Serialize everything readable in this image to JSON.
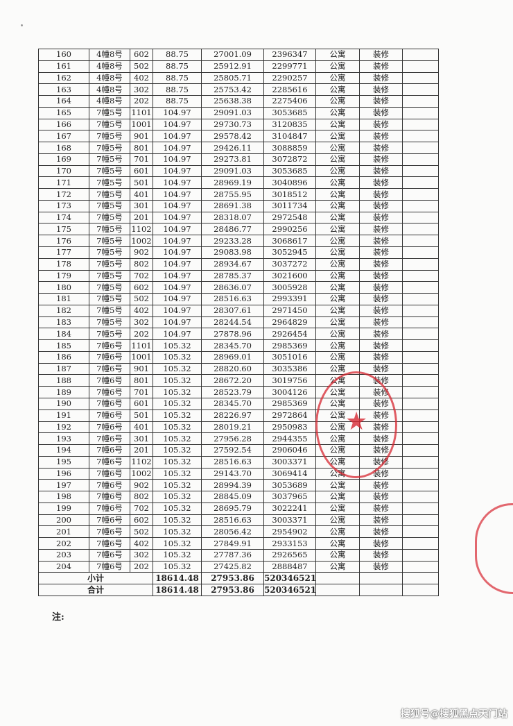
{
  "table": {
    "rows": [
      [
        "160",
        "4幢8号",
        "602",
        "88.75",
        "27001.09",
        "2396347",
        "公寓",
        "装修"
      ],
      [
        "161",
        "4幢8号",
        "502",
        "88.75",
        "25912.91",
        "2299771",
        "公寓",
        "装修"
      ],
      [
        "162",
        "4幢8号",
        "402",
        "88.75",
        "25805.71",
        "2290257",
        "公寓",
        "装修"
      ],
      [
        "163",
        "4幢8号",
        "302",
        "88.75",
        "25753.42",
        "2285616",
        "公寓",
        "装修"
      ],
      [
        "164",
        "4幢8号",
        "202",
        "88.75",
        "25638.38",
        "2275406",
        "公寓",
        "装修"
      ],
      [
        "165",
        "7幢5号",
        "1101",
        "104.97",
        "29091.03",
        "3053685",
        "公寓",
        "装修"
      ],
      [
        "166",
        "7幢5号",
        "1001",
        "104.97",
        "29730.73",
        "3120835",
        "公寓",
        "装修"
      ],
      [
        "167",
        "7幢5号",
        "901",
        "104.97",
        "29578.42",
        "3104847",
        "公寓",
        "装修"
      ],
      [
        "168",
        "7幢5号",
        "801",
        "104.97",
        "29426.11",
        "3088859",
        "公寓",
        "装修"
      ],
      [
        "169",
        "7幢5号",
        "701",
        "104.97",
        "29273.81",
        "3072872",
        "公寓",
        "装修"
      ],
      [
        "170",
        "7幢5号",
        "601",
        "104.97",
        "29091.03",
        "3053685",
        "公寓",
        "装修"
      ],
      [
        "171",
        "7幢5号",
        "501",
        "104.97",
        "28969.19",
        "3040896",
        "公寓",
        "装修"
      ],
      [
        "172",
        "7幢5号",
        "401",
        "104.97",
        "28755.95",
        "3018512",
        "公寓",
        "装修"
      ],
      [
        "173",
        "7幢5号",
        "301",
        "104.97",
        "28691.38",
        "3011734",
        "公寓",
        "装修"
      ],
      [
        "174",
        "7幢5号",
        "201",
        "104.97",
        "28318.07",
        "2972548",
        "公寓",
        "装修"
      ],
      [
        "175",
        "7幢5号",
        "1102",
        "104.97",
        "28486.77",
        "2990256",
        "公寓",
        "装修"
      ],
      [
        "176",
        "7幢5号",
        "1002",
        "104.97",
        "29233.28",
        "3068617",
        "公寓",
        "装修"
      ],
      [
        "177",
        "7幢5号",
        "902",
        "104.97",
        "29083.98",
        "3052945",
        "公寓",
        "装修"
      ],
      [
        "178",
        "7幢5号",
        "802",
        "104.97",
        "28934.67",
        "3037272",
        "公寓",
        "装修"
      ],
      [
        "179",
        "7幢5号",
        "702",
        "104.97",
        "28785.37",
        "3021600",
        "公寓",
        "装修"
      ],
      [
        "180",
        "7幢5号",
        "602",
        "104.97",
        "28636.07",
        "3005928",
        "公寓",
        "装修"
      ],
      [
        "181",
        "7幢5号",
        "502",
        "104.97",
        "28516.63",
        "2993391",
        "公寓",
        "装修"
      ],
      [
        "182",
        "7幢5号",
        "402",
        "104.97",
        "28307.61",
        "2971450",
        "公寓",
        "装修"
      ],
      [
        "183",
        "7幢5号",
        "302",
        "104.97",
        "28244.54",
        "2964829",
        "公寓",
        "装修"
      ],
      [
        "184",
        "7幢5号",
        "202",
        "104.97",
        "27878.96",
        "2926454",
        "公寓",
        "装修"
      ],
      [
        "185",
        "7幢6号",
        "1101",
        "105.32",
        "28345.70",
        "2985369",
        "公寓",
        "装修"
      ],
      [
        "186",
        "7幢6号",
        "1001",
        "105.32",
        "28969.01",
        "3051016",
        "公寓",
        "装修"
      ],
      [
        "187",
        "7幢6号",
        "901",
        "105.32",
        "28820.60",
        "3035386",
        "公寓",
        "装修"
      ],
      [
        "188",
        "7幢6号",
        "801",
        "105.32",
        "28672.20",
        "3019756",
        "公寓",
        "装修"
      ],
      [
        "189",
        "7幢6号",
        "701",
        "105.32",
        "28523.79",
        "3004126",
        "公寓",
        "装修"
      ],
      [
        "190",
        "7幢6号",
        "601",
        "105.32",
        "28345.70",
        "2985369",
        "公寓",
        "装修"
      ],
      [
        "191",
        "7幢6号",
        "501",
        "105.32",
        "28226.97",
        "2972864",
        "公寓",
        "装修"
      ],
      [
        "192",
        "7幢6号",
        "401",
        "105.32",
        "28019.21",
        "2950983",
        "公寓",
        "装修"
      ],
      [
        "193",
        "7幢6号",
        "301",
        "105.32",
        "27956.28",
        "2944355",
        "公寓",
        "装修"
      ],
      [
        "194",
        "7幢6号",
        "201",
        "105.32",
        "27592.54",
        "2906046",
        "公寓",
        "装修"
      ],
      [
        "195",
        "7幢6号",
        "1102",
        "105.32",
        "28516.63",
        "3003371",
        "公寓",
        "装修"
      ],
      [
        "196",
        "7幢6号",
        "1002",
        "105.32",
        "29143.70",
        "3069414",
        "公寓",
        "装修"
      ],
      [
        "197",
        "7幢6号",
        "902",
        "105.32",
        "28994.39",
        "3053689",
        "公寓",
        "装修"
      ],
      [
        "198",
        "7幢6号",
        "802",
        "105.32",
        "28845.09",
        "3037965",
        "公寓",
        "装修"
      ],
      [
        "199",
        "7幢6号",
        "702",
        "105.32",
        "28695.79",
        "3022241",
        "公寓",
        "装修"
      ],
      [
        "200",
        "7幢6号",
        "602",
        "105.32",
        "28516.63",
        "3003371",
        "公寓",
        "装修"
      ],
      [
        "201",
        "7幢6号",
        "502",
        "105.32",
        "28056.42",
        "2954902",
        "公寓",
        "装修"
      ],
      [
        "202",
        "7幢6号",
        "402",
        "105.32",
        "27849.91",
        "2933153",
        "公寓",
        "装修"
      ],
      [
        "203",
        "7幢6号",
        "302",
        "105.32",
        "27787.36",
        "2926565",
        "公寓",
        "装修"
      ],
      [
        "204",
        "7幢6号",
        "202",
        "105.32",
        "27425.82",
        "2888487",
        "公寓",
        "装修"
      ]
    ],
    "subtotal": {
      "label": "小计",
      "area": "18614.48",
      "unit_price": "27953.86",
      "total": "520346521"
    },
    "total": {
      "label": "合计",
      "area": "18614.48",
      "unit_price": "27953.86",
      "total": "520346521"
    }
  },
  "note_label": "注:",
  "watermark": "搜狐号@搜狐黑点天门站",
  "stamp_color": "#d72832"
}
